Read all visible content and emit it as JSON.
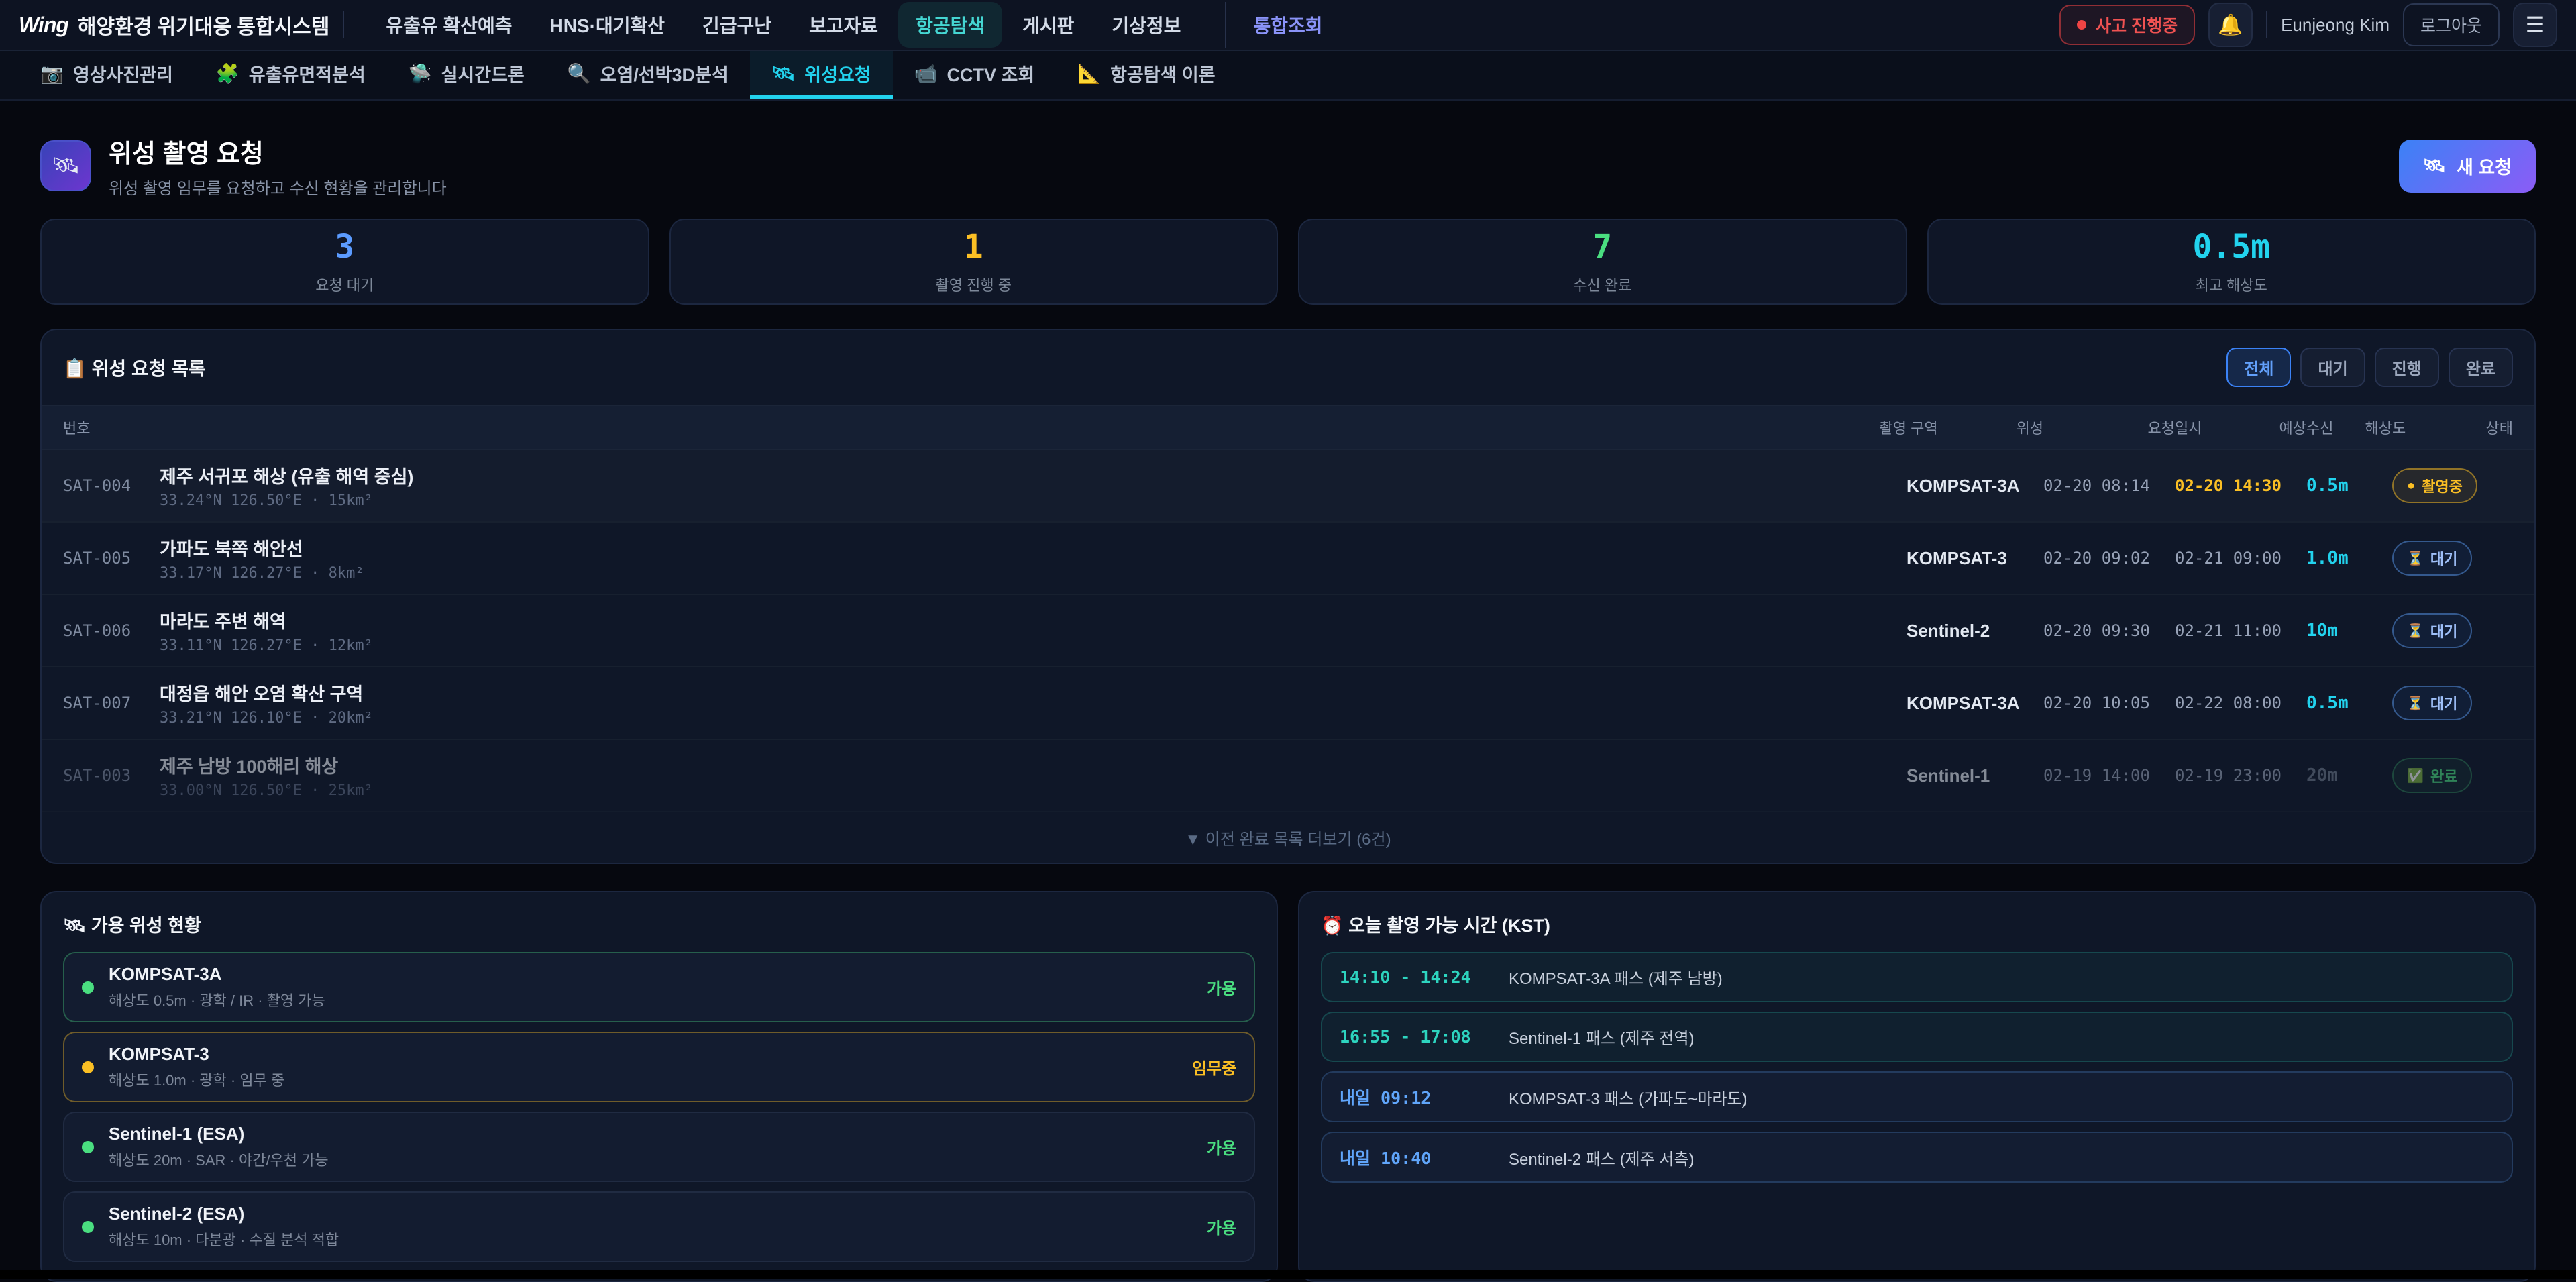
{
  "theme": {
    "accent_cyan": "#22d3ee",
    "accent_teal": "#2dd4bf",
    "accent_blue": "#5b9bff",
    "accent_amber": "#fbbf24",
    "accent_green": "#4ade80",
    "accent_red": "#ef4444",
    "accent_indigo": "#8a93f8",
    "button_gradient": [
      "#3b82f6",
      "#8b5cf6"
    ]
  },
  "top_nav": {
    "logo": "Wing",
    "brand": "해양환경 위기대응 통합시스템",
    "items": [
      {
        "label": "유출유 확산예측",
        "mod": ""
      },
      {
        "label": "HNS·대기확산",
        "mod": ""
      },
      {
        "label": "긴급구난",
        "mod": ""
      },
      {
        "label": "보고자료",
        "mod": ""
      },
      {
        "label": "항공탐색",
        "mod": "active"
      },
      {
        "label": "게시판",
        "mod": ""
      },
      {
        "label": "기상정보",
        "mod": ""
      }
    ],
    "integrated_label": "통합조회",
    "incident_badge_label": "사고 진행중",
    "bell_icon": "🔔",
    "user_name": "Eunjeong Kim",
    "logout_label": "로그아웃",
    "hamburger_icon": "☰"
  },
  "tab_bar": {
    "tabs": [
      {
        "icon": "📷",
        "label": "영상사진관리",
        "mod": ""
      },
      {
        "icon": "🧩",
        "label": "유출유면적분석",
        "mod": ""
      },
      {
        "icon": "🛸",
        "label": "실시간드론",
        "mod": ""
      },
      {
        "icon": "🔍",
        "label": "오염/선박3D분석",
        "mod": ""
      },
      {
        "icon": "🛰",
        "label": "위성요청",
        "mod": "active"
      },
      {
        "icon": "📹",
        "label": "CCTV 조회",
        "mod": ""
      },
      {
        "icon": "📐",
        "label": "항공탐색 이론",
        "mod": ""
      }
    ]
  },
  "page_header": {
    "icon": "🛰",
    "title": "위성 촬영 요청",
    "subtitle": "위성 촬영 임무를 요청하고 수신 현황을 관리합니다",
    "new_request": {
      "icon": "🛰",
      "label": "새 요청"
    }
  },
  "stats": [
    {
      "value": "3",
      "label": "요청 대기",
      "color": "#5b9bff"
    },
    {
      "value": "1",
      "label": "촬영 진행 중",
      "color": "#fbbf24"
    },
    {
      "value": "7",
      "label": "수신 완료",
      "color": "#4ade80"
    },
    {
      "value": "0.5m",
      "label": "최고 해상도",
      "color": "#22d3ee"
    }
  ],
  "request_table": {
    "title": "📋 위성 요청 목록",
    "filters": [
      {
        "label": "전체",
        "mod": "active"
      },
      {
        "label": "대기",
        "mod": ""
      },
      {
        "label": "진행",
        "mod": ""
      },
      {
        "label": "완료",
        "mod": ""
      }
    ],
    "columns": [
      {
        "label": "번호"
      },
      {
        "label": "촬영 구역"
      },
      {
        "label": "위성"
      },
      {
        "label": "요청일시"
      },
      {
        "label": "예상수신"
      },
      {
        "label": "해상도"
      },
      {
        "label": "상태"
      }
    ],
    "rows": [
      {
        "id": "SAT-004",
        "area": "제주 서귀포 해상 (유출 해역 중심)",
        "coords": "33.24°N 126.50°E · 15km²",
        "satellite": "KOMPSAT-3A",
        "requested": "02-20 08:14",
        "expected": "02-20 14:30",
        "expected_mod": "hot",
        "resolution": "0.5m",
        "res_mod": "",
        "status_icon": "●",
        "status": "촬영중",
        "status_mod": "shooting",
        "row_mod": "active"
      },
      {
        "id": "SAT-005",
        "area": "가파도 북쪽 해안선",
        "coords": "33.17°N 126.27°E · 8km²",
        "satellite": "KOMPSAT-3",
        "requested": "02-20 09:02",
        "expected": "02-21 09:00",
        "expected_mod": "",
        "resolution": "1.0m",
        "res_mod": "",
        "status_icon": "⏳",
        "status": "대기",
        "status_mod": "waiting",
        "row_mod": ""
      },
      {
        "id": "SAT-006",
        "area": "마라도 주변 해역",
        "coords": "33.11°N 126.27°E · 12km²",
        "satellite": "Sentinel-2",
        "requested": "02-20 09:30",
        "expected": "02-21 11:00",
        "expected_mod": "",
        "resolution": "10m",
        "res_mod": "",
        "status_icon": "⏳",
        "status": "대기",
        "status_mod": "waiting",
        "row_mod": ""
      },
      {
        "id": "SAT-007",
        "area": "대정읍 해안 오염 확산 구역",
        "coords": "33.21°N 126.10°E · 20km²",
        "satellite": "KOMPSAT-3A",
        "requested": "02-20 10:05",
        "expected": "02-22 08:00",
        "expected_mod": "",
        "resolution": "0.5m",
        "res_mod": "",
        "status_icon": "⏳",
        "status": "대기",
        "status_mod": "waiting",
        "row_mod": ""
      },
      {
        "id": "SAT-003",
        "area": "제주 남방 100해리 해상",
        "coords": "33.00°N 126.50°E · 25km²",
        "satellite": "Sentinel-1",
        "requested": "02-19 14:00",
        "expected": "02-19 23:00",
        "expected_mod": "",
        "resolution": "20m",
        "res_mod": "muted",
        "status_icon": "✅",
        "status": "완료",
        "status_mod": "done",
        "row_mod": "dimmed"
      }
    ],
    "more_label": "▼ 이전 완료 목록 더보기 (6건)"
  },
  "satellites_panel": {
    "title": "🛰 가용 위성 현황",
    "items": [
      {
        "name": "KOMPSAT-3A",
        "desc": "해상도 0.5m · 광학 / IR · 촬영 가능",
        "status": "가용",
        "mod": "avail-strong"
      },
      {
        "name": "KOMPSAT-3",
        "desc": "해상도 1.0m · 광학 · 임무 중",
        "status": "임무중",
        "mod": "busy"
      },
      {
        "name": "Sentinel-1 (ESA)",
        "desc": "해상도 20m · SAR · 야간/우천 가능",
        "status": "가용",
        "mod": ""
      },
      {
        "name": "Sentinel-2 (ESA)",
        "desc": "해상도 10m · 다분광 · 수질 분석 적합",
        "status": "가용",
        "mod": ""
      }
    ]
  },
  "schedule_panel": {
    "title": "⏰ 오늘 촬영 가능 시간 (KST)",
    "items": [
      {
        "time": "14:10 - 14:24",
        "desc": "KOMPSAT-3A 패스 (제주 남방)",
        "mod": "today"
      },
      {
        "time": "16:55 - 17:08",
        "desc": "Sentinel-1 패스 (제주 전역)",
        "mod": "today"
      },
      {
        "time": "내일 09:12",
        "desc": "KOMPSAT-3 패스 (가파도~마라도)",
        "mod": "tomorrow"
      },
      {
        "time": "내일 10:40",
        "desc": "Sentinel-2 패스 (제주 서측)",
        "mod": "tomorrow"
      }
    ]
  }
}
